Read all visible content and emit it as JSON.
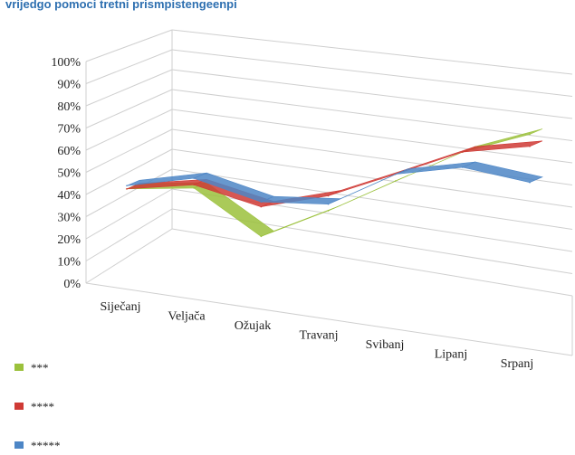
{
  "page_note": "vrijedgo pomoci tretni prismpistengeenpi",
  "colors": {
    "series_1": "#9bc13c",
    "series_2": "#cf3a35",
    "series_3": "#4d86c6",
    "grid": "#cfcfcf",
    "text": "#222222"
  },
  "chart_data": {
    "type": "line",
    "variant": "3d-ribbon",
    "title": "",
    "xlabel": "",
    "ylabel": "",
    "categories": [
      "Siječanj",
      "Veljača",
      "Ožujak",
      "Travanj",
      "Svibanj",
      "Lipanj",
      "Srpanj"
    ],
    "y_ticks": [
      "0%",
      "10%",
      "20%",
      "30%",
      "40%",
      "50%",
      "60%",
      "70%",
      "80%",
      "90%",
      "100%"
    ],
    "ylim": [
      0,
      100
    ],
    "y_unit": "%",
    "grid": true,
    "legend_position": "bottom-left",
    "series": [
      {
        "name": "***",
        "values": [
          22,
          28,
          4,
          25,
          48,
          70,
          85
        ]
      },
      {
        "name": "****",
        "values": [
          22,
          30,
          22,
          34,
          52,
          70,
          78
        ]
      },
      {
        "name": "*****",
        "values": [
          24,
          34,
          25,
          29,
          52,
          61,
          57
        ]
      }
    ]
  }
}
